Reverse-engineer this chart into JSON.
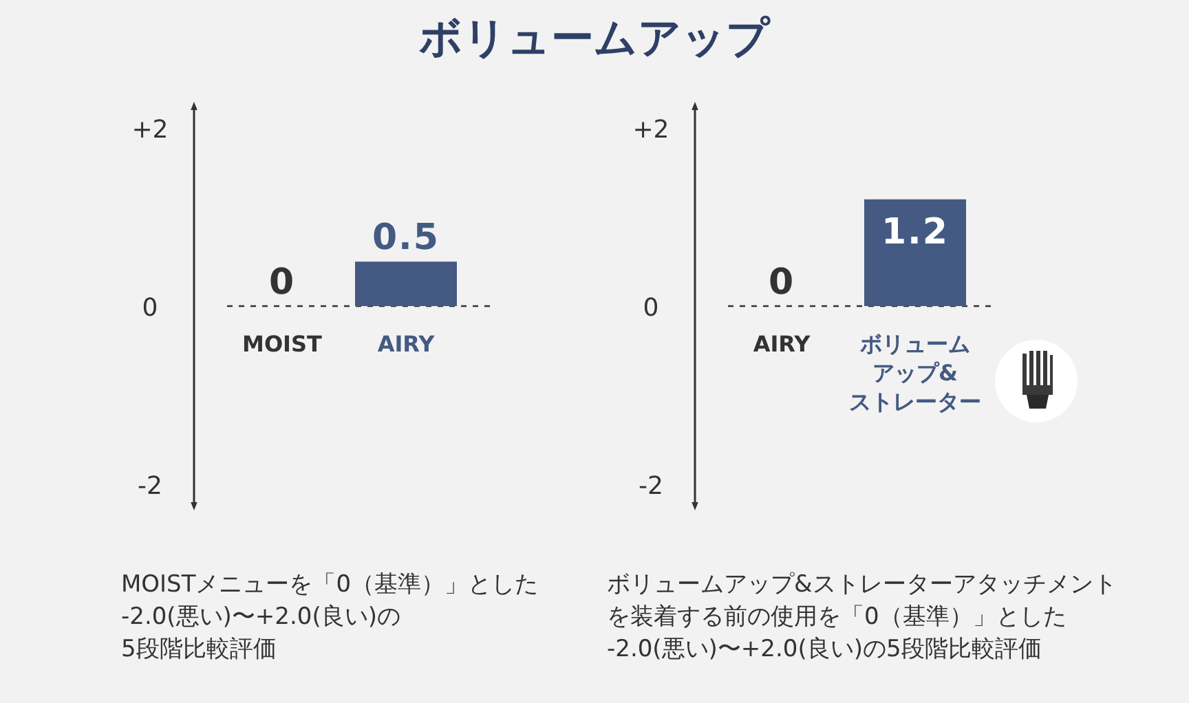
{
  "chart_data": [
    {
      "type": "bar",
      "title": "ボリュームアップ",
      "categories": [
        "MOIST",
        "AIRY"
      ],
      "values": [
        0,
        0.5
      ],
      "colors": [
        "#333333",
        "#445a82"
      ],
      "ylim": [
        -2.25,
        2.25
      ],
      "yticks": [
        {
          "value": 2,
          "label": "+2"
        },
        {
          "value": 0,
          "label": "0"
        },
        {
          "value": -2,
          "label": "-2"
        }
      ],
      "data_labels": true,
      "ref_lines": [
        {
          "axis": "y",
          "value": 0,
          "line_style": "dashed",
          "color": "#333333"
        }
      ],
      "annotations": [
        "MOISTメニューを「0（基準）」とした-2.0(悪い)〜+2.0(良い)の5段階比較評価"
      ]
    },
    {
      "type": "bar",
      "categories": [
        "AIRY",
        "ボリュームアップ&ストレーター"
      ],
      "values": [
        0,
        1.2
      ],
      "colors": [
        "#333333",
        "#445a82"
      ],
      "ylim": [
        -2.25,
        2.25
      ],
      "yticks": [
        {
          "value": 2,
          "label": "+2"
        },
        {
          "value": 0,
          "label": "0"
        },
        {
          "value": -2,
          "label": "-2"
        }
      ],
      "data_labels": true,
      "ref_lines": [
        {
          "axis": "y",
          "value": 0,
          "line_style": "dashed",
          "color": "#333333"
        }
      ],
      "annotations": [
        "ボリュームアップ&ストレーターアタッチメントを装着する前の使用を「0（基準）」とした-2.0(悪い)〜+2.0(良い)の5段階比較評価"
      ]
    }
  ]
}
